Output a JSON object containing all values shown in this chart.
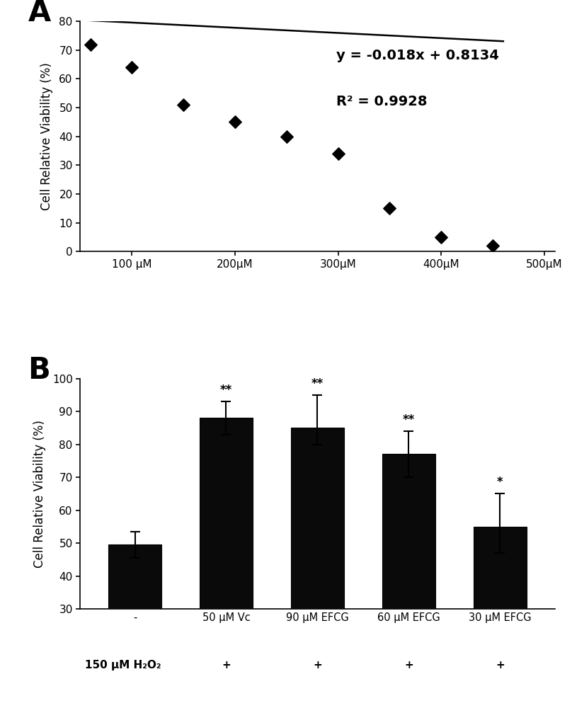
{
  "panel_A": {
    "scatter_x": [
      60,
      100,
      150,
      200,
      250,
      300,
      350,
      400,
      450
    ],
    "scatter_y": [
      72,
      64,
      51,
      45,
      40,
      34,
      15,
      5,
      2
    ],
    "slope": -0.018,
    "intercept": 81.34,
    "line_x_start": 55,
    "line_x_end": 460,
    "equation_line1": "y = -0.018x + 0.8134",
    "equation_line2": "R² = 0.9928",
    "xlabel_ticks": [
      100,
      200,
      300,
      400,
      500
    ],
    "xlabel_labels": [
      "100 μM",
      "200μM",
      "300μM",
      "400μM",
      "500μM"
    ],
    "ylabel": "Cell Relative Viability (%)",
    "ylim": [
      0,
      80
    ],
    "yticks": [
      0,
      10,
      20,
      30,
      40,
      50,
      60,
      70,
      80
    ],
    "xlim": [
      50,
      510
    ]
  },
  "panel_B": {
    "categories": [
      "-",
      "50 μM Vᴄ",
      "90 μM EFCG",
      "60 μM EFCG",
      "30 μM EFCG"
    ],
    "values": [
      49.5,
      88,
      85,
      77,
      55
    ],
    "errors_up": [
      4,
      5,
      10,
      7,
      10
    ],
    "errors_down": [
      4,
      5,
      5,
      7,
      8
    ],
    "significance": [
      "",
      "**",
      "**",
      "**",
      "*"
    ],
    "h2o2_row": [
      " ",
      "+",
      "+",
      "+",
      "+"
    ],
    "ylabel": "Cell Relative Viability (%)",
    "ylim": [
      30,
      100
    ],
    "yticks": [
      30,
      40,
      50,
      60,
      70,
      80,
      90,
      100
    ],
    "bar_color": "#0a0a0a",
    "h2o2_label": "150 μM H₂O₂"
  },
  "label_fontsize": 30,
  "eq_fontsize": 14,
  "axis_label_fontsize": 12,
  "tick_fontsize": 11,
  "bg_color": "#ffffff"
}
